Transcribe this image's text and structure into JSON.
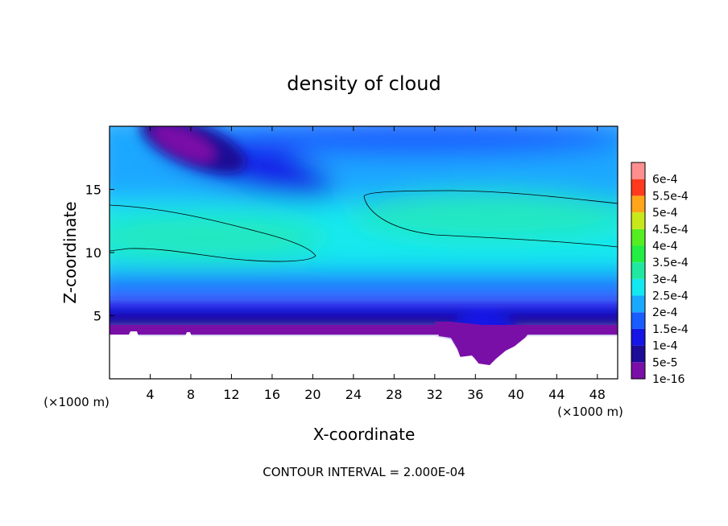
{
  "chart_data": {
    "type": "heatmap",
    "title": "density of cloud",
    "xlabel": "X-coordinate",
    "ylabel": "Z-coordinate",
    "x_unit": "(×1000 m)",
    "y_unit": "(×1000 m)",
    "xlim": [
      0,
      50
    ],
    "ylim": [
      0,
      20
    ],
    "x_ticks": [
      4,
      8,
      12,
      16,
      20,
      24,
      28,
      32,
      36,
      40,
      44,
      48
    ],
    "y_ticks": [
      5,
      10,
      15
    ],
    "footer": "CONTOUR INTERVAL = 2.000E-04",
    "colorbar": {
      "labels": [
        "1e-16",
        "5e-5",
        "1e-4",
        "1.5e-4",
        "2e-4",
        "2.5e-4",
        "3e-4",
        "3.5e-4",
        "4e-4",
        "4.5e-4",
        "5e-4",
        "5.5e-4",
        "6e-4"
      ],
      "colors": [
        "#7a0fa8",
        "#1c0c96",
        "#1515e6",
        "#1a5cff",
        "#1aa8ff",
        "#13e8f0",
        "#20e8a0",
        "#22ee44",
        "#55ee22",
        "#c8e81c",
        "#ffa51a",
        "#ff3a1e",
        "#ff8f8f"
      ]
    },
    "contour_level": 0.0002,
    "grid": false,
    "legend": "right"
  }
}
